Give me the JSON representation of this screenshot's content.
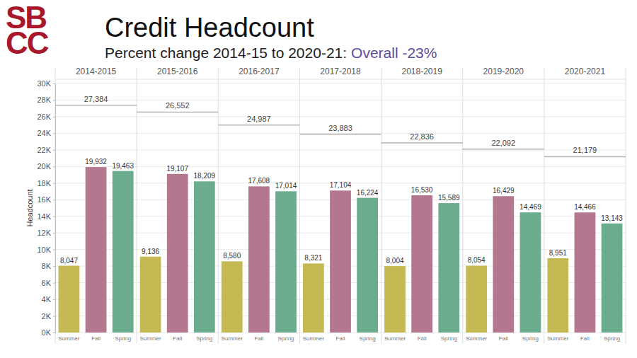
{
  "chart_data": {
    "type": "bar",
    "logo": [
      "SB",
      "CC"
    ],
    "title": "Credit Headcount",
    "subtitle": "Percent change 2014-15 to 2020-21:",
    "annotation": "Overall -23%",
    "y_label": "Headcount",
    "categories": [
      "2014-2015",
      "2015-2016",
      "2016-2017",
      "2017-2018",
      "2018-2019",
      "2019-2020",
      "2020-2021"
    ],
    "series": [
      {
        "name": "Summer",
        "color": "#c5b954",
        "values": [
          8047,
          9136,
          8580,
          8321,
          8004,
          8054,
          8951
        ],
        "value_labels": [
          "8,047",
          "9,136",
          "8,580",
          "8,321",
          "8,004",
          "8,054",
          "8,951"
        ]
      },
      {
        "name": "Fall",
        "color": "#b3778f",
        "values": [
          19932,
          19107,
          17608,
          17104,
          16530,
          16429,
          14466
        ],
        "value_labels": [
          "19,932",
          "19,107",
          "17,608",
          "17,104",
          "16,530",
          "16,429",
          "14,466"
        ]
      },
      {
        "name": "Spring",
        "color": "#6bab8e",
        "values": [
          19463,
          18209,
          17014,
          16224,
          15589,
          14469,
          13143
        ],
        "value_labels": [
          "19,463",
          "18,209",
          "17,014",
          "16,224",
          "15,589",
          "14,469",
          "13,143"
        ]
      }
    ],
    "totals": {
      "values": [
        27384,
        26552,
        24987,
        23883,
        22836,
        22092,
        21179
      ],
      "value_labels": [
        "27,384",
        "26,552",
        "24,987",
        "23,883",
        "22,836",
        "22,092",
        "21,179"
      ]
    },
    "ylim": [
      0,
      30000
    ],
    "yticks": [
      {
        "value": 0,
        "label": "0K"
      },
      {
        "value": 2000,
        "label": "2K"
      },
      {
        "value": 4000,
        "label": "4K"
      },
      {
        "value": 6000,
        "label": "6K"
      },
      {
        "value": 8000,
        "label": "8K"
      },
      {
        "value": 10000,
        "label": "10K"
      },
      {
        "value": 12000,
        "label": "12K"
      },
      {
        "value": 14000,
        "label": "14K"
      },
      {
        "value": 16000,
        "label": "16K"
      },
      {
        "value": 18000,
        "label": "18K"
      },
      {
        "value": 20000,
        "label": "20K"
      },
      {
        "value": 22000,
        "label": "22K"
      },
      {
        "value": 24000,
        "label": "24K"
      },
      {
        "value": 26000,
        "label": "26K"
      },
      {
        "value": 28000,
        "label": "28K"
      },
      {
        "value": 30000,
        "label": "30K"
      }
    ],
    "grid": true,
    "data_labels": true
  }
}
